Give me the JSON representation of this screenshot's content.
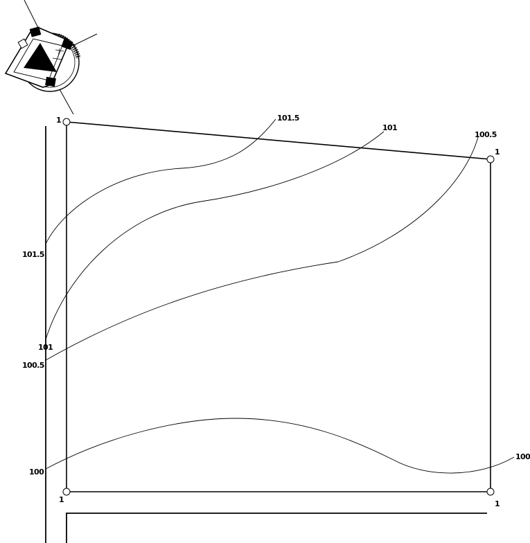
{
  "compass": {
    "icon": "north-arrow-compass-icon"
  },
  "corners": [
    {
      "id": "top-left",
      "label": "1"
    },
    {
      "id": "top-right",
      "label": "1"
    },
    {
      "id": "bottom-left",
      "label": "1"
    },
    {
      "id": "bottom-right",
      "label": "1"
    }
  ],
  "contours": [
    {
      "id": "contour-101-5",
      "start_label": "101.5",
      "end_label": "101.5"
    },
    {
      "id": "contour-101",
      "start_label": "101",
      "end_label": "101"
    },
    {
      "id": "contour-100-5",
      "start_label": "100.5",
      "end_label": "100.5"
    },
    {
      "id": "contour-100",
      "start_label": "100",
      "end_label": "100"
    }
  ]
}
